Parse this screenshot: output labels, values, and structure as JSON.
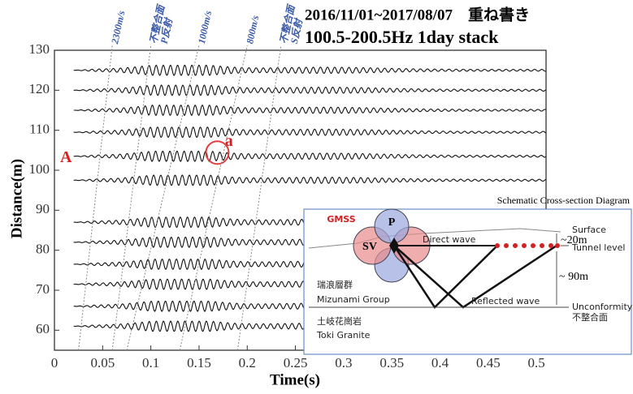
{
  "chart_data": {
    "type": "wiggle",
    "title": "2016/11/01~2017/08/07　重ね書き",
    "subtitle": "100.5-200.5Hz 1day stack",
    "x_label": "Time(s)",
    "y_label": "Distance(m)",
    "xlim": [
      0,
      0.51
    ],
    "ylim": [
      55,
      130
    ],
    "xticks": [
      0,
      0.05,
      0.1,
      0.15,
      0.2,
      0.25,
      0.3,
      0.35,
      0.4,
      0.45,
      0.5
    ],
    "yticks": [
      60,
      70,
      80,
      90,
      100,
      110,
      120,
      130
    ],
    "traces": {
      "color": "#111",
      "offsets": [
        125,
        120,
        115,
        109.5,
        103.5,
        97.5,
        87,
        82,
        76.5,
        71.5,
        66,
        61
      ]
    },
    "velocity_lines": [
      {
        "label": [
          "2300m/s"
        ],
        "x": [
          0.025,
          0.06
        ],
        "y": [
          55,
          130
        ]
      },
      {
        "label": [
          "不整合面",
          "P反射"
        ],
        "x": [
          0.06,
          0.1
        ],
        "y": [
          55,
          130
        ]
      },
      {
        "label": [
          "1000m/s"
        ],
        "x": [
          0.075,
          0.15
        ],
        "y": [
          55,
          130
        ]
      },
      {
        "label": [
          "800m/s"
        ],
        "x": [
          0.13,
          0.2
        ],
        "y": [
          55,
          130
        ]
      },
      {
        "label": [
          "不整合面",
          "S反射"
        ],
        "x": [
          0.19,
          0.235
        ],
        "y": [
          55,
          130
        ]
      }
    ],
    "annotations": [
      {
        "text": "A",
        "x": 0.012,
        "y": 103
      },
      {
        "text": "a",
        "x": 0.181,
        "y": 107
      }
    ],
    "circle": {
      "x": 0.169,
      "y": 104.4
    }
  },
  "diagram": {
    "title": "Schematic Cross-section Diagram",
    "gmss": "GMSS",
    "p": "P",
    "sv": "SV",
    "surface": "Surface",
    "direct": "Direct wave",
    "depth20": "~20m",
    "tunnel": "Tunnel level",
    "depth90": "~ 90m",
    "group_jp": "瑞浪層群",
    "group_en": "Mizunami Group",
    "reflected": "Reflected wave",
    "unconf_en": "Unconformity",
    "unconf_jp": "不整合面",
    "granite_jp": "土岐花崗岩",
    "granite_en": "Toki Granite"
  }
}
